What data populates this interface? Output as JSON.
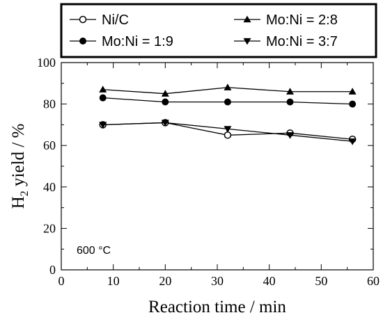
{
  "chart_data": {
    "type": "line",
    "xlabel": "Reaction time / min",
    "ylabel": {
      "main": "H",
      "subscript": "2",
      "rest": " yield / %"
    },
    "xlim": [
      0,
      60
    ],
    "ylim": [
      0,
      100
    ],
    "xticks": [
      "0",
      "10",
      "20",
      "30",
      "40",
      "50",
      "60"
    ],
    "yticks": [
      "0",
      "20",
      "40",
      "60",
      "80",
      "100"
    ],
    "grid": false,
    "legend_position": "top (boxed, two columns)",
    "annotation": "600 °C",
    "series": [
      {
        "name": "Ni/C",
        "marker": "open-circle",
        "x": [
          8,
          20,
          32,
          44,
          56
        ],
        "y": [
          70,
          71,
          65,
          66,
          63
        ]
      },
      {
        "name": "Mo:Ni = 2:8",
        "marker": "filled-triangle-up",
        "x": [
          8,
          20,
          32,
          44,
          56
        ],
        "y": [
          87,
          85,
          88,
          86,
          86
        ]
      },
      {
        "name": "Mo:Ni = 1:9",
        "marker": "filled-circle",
        "x": [
          8,
          20,
          32,
          44,
          56
        ],
        "y": [
          83,
          81,
          81,
          81,
          80
        ]
      },
      {
        "name": "Mo:Ni = 3:7",
        "marker": "filled-triangle-down",
        "x": [
          8,
          20,
          32,
          44,
          56
        ],
        "y": [
          70,
          71,
          68,
          65,
          62
        ]
      }
    ]
  }
}
